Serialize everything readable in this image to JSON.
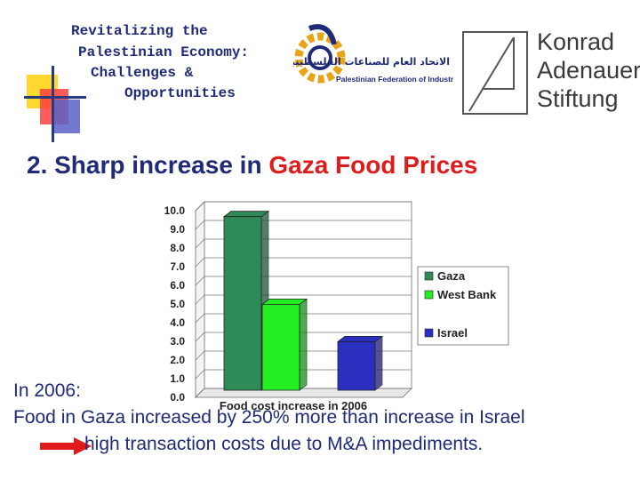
{
  "header": {
    "lines": [
      "Revitalizing the",
      "Palestinian Economy:",
      "Challenges &",
      "Opportunities"
    ]
  },
  "logos": {
    "pfi_arabic": "الاتحاد العام للصناعات الفلسطينية",
    "pfi_english": "Palestinian Federation of Industries",
    "kas": [
      "Konrad",
      "Adenauer",
      "Stiftung"
    ]
  },
  "slide": {
    "title_prefix": "2. Sharp increase in ",
    "title_highlight": "Gaza Food Prices"
  },
  "body": {
    "line1": "In 2006:",
    "line2": "Food in Gaza increased by 250% more than increase in Israel",
    "line3": "high transaction costs due to M&A impediments."
  },
  "colors": {
    "title_red": "#e01b1b",
    "text_blue": "#1f2a78",
    "arrow_red": "#e01b1b"
  },
  "chart_data": {
    "type": "bar",
    "categories": [
      "Food cost increase in 2006"
    ],
    "xlabel": "Food cost increase in 2006",
    "ylabel": "",
    "ylim": [
      0,
      10
    ],
    "yticks": [
      "0.0",
      "1.0",
      "2.0",
      "3.0",
      "4.0",
      "5.0",
      "6.0",
      "7.0",
      "8.0",
      "9.0",
      "10.0"
    ],
    "series": [
      {
        "name": "Gaza",
        "values": [
          9.3
        ],
        "color": "#2e8b57"
      },
      {
        "name": "West Bank",
        "values": [
          4.6
        ],
        "color": "#22ee22"
      },
      {
        "name": "Israel",
        "values": [
          2.6
        ],
        "color": "#2a2fbf"
      }
    ],
    "legend_position": "right",
    "grid": true
  }
}
